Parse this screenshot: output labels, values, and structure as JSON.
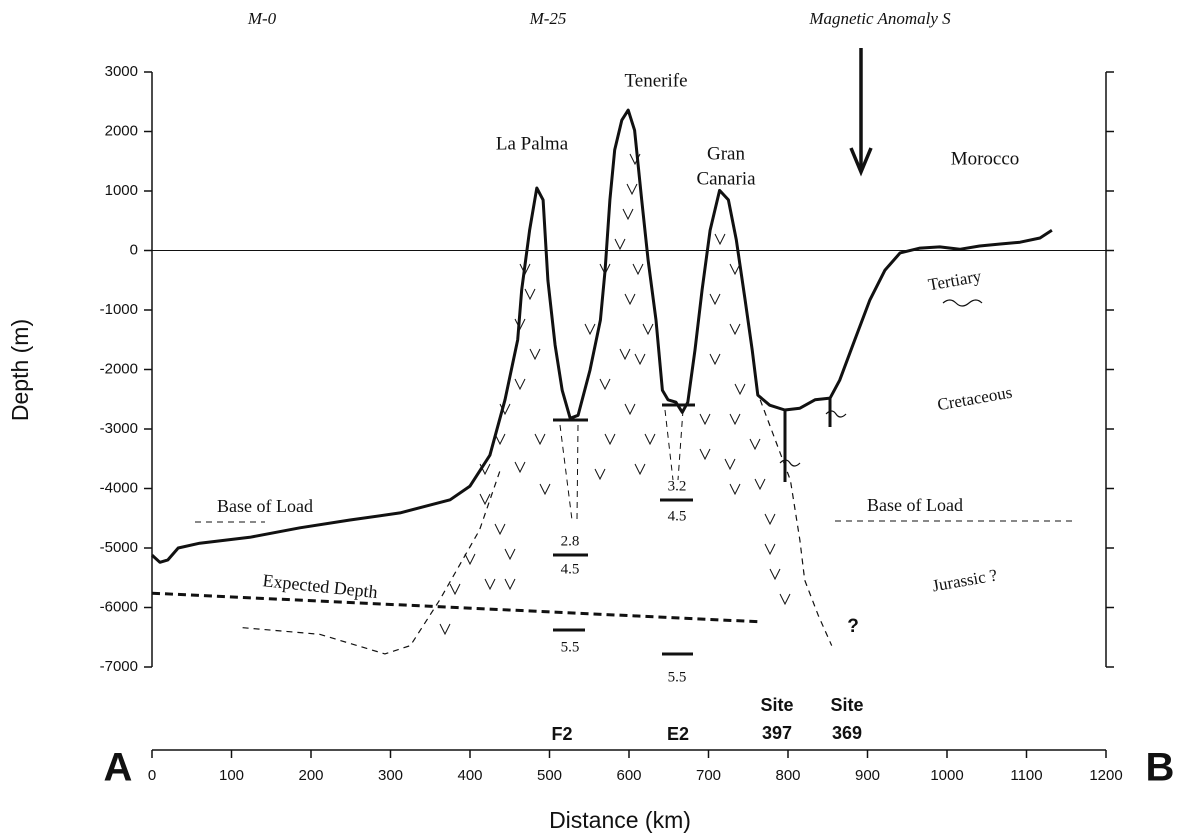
{
  "chart_data": {
    "type": "line",
    "x_label": "Distance (km)",
    "y_label": "Depth (m)",
    "xlim": [
      0,
      1200
    ],
    "xticks": [
      0,
      100,
      200,
      300,
      400,
      500,
      600,
      700,
      800,
      900,
      1000,
      1100,
      1200
    ],
    "ylim": [
      -7000,
      3000
    ],
    "yticks": [
      -7000,
      -6000,
      -5000,
      -4000,
      -3000,
      -2000,
      -1000,
      0,
      1000,
      2000,
      3000
    ],
    "series": [
      {
        "line_style": "solid",
        "color": "#111111",
        "x": [
          0,
          10,
          20,
          33,
          60,
          123,
          186,
          249,
          312,
          375,
          400,
          425,
          444,
          460,
          465,
          475,
          484,
          492,
          498,
          507,
          516,
          526,
          536,
          551,
          564,
          570,
          576,
          582,
          591,
          599,
          607,
          616,
          624,
          634,
          642,
          649,
          659,
          667,
          674,
          683,
          692,
          702,
          714,
          725,
          735,
          746,
          755,
          762,
          777,
          796,
          815,
          834,
          853,
          865,
          884,
          903,
          922,
          941,
          966,
          991,
          1016,
          1041,
          1067,
          1092,
          1117,
          1132
        ],
        "values": [
          -5120,
          -5240,
          -5200,
          -5000,
          -4920,
          -4820,
          -4660,
          -4530,
          -4410,
          -4190,
          -3960,
          -3440,
          -2510,
          -1500,
          -660,
          340,
          1050,
          850,
          -500,
          -1590,
          -2350,
          -2820,
          -2770,
          -2010,
          -1170,
          -330,
          850,
          1690,
          2190,
          2360,
          2020,
          850,
          -160,
          -1170,
          -2350,
          -2510,
          -2550,
          -2720,
          -2550,
          -1670,
          -660,
          340,
          1010,
          850,
          180,
          -830,
          -1670,
          -2430,
          -2600,
          -2680,
          -2650,
          -2510,
          -2480,
          -2180,
          -1500,
          -830,
          -330,
          -40,
          40,
          60,
          20,
          75,
          110,
          140,
          210,
          340
        ]
      },
      {
        "line_style": "thick-dashed",
        "color": "#111111",
        "x": [
          0,
          765
        ],
        "values": [
          -5760,
          -6240
        ]
      },
      {
        "line_style": "dashed",
        "color": "#111111",
        "x": [
          114,
          211,
          293,
          325,
          362,
          412,
          438,
          null,
          765,
          803,
          815,
          821,
          838,
          855
        ],
        "values": [
          -6340,
          -6450,
          -6780,
          -6640,
          -5870,
          -4700,
          -3690,
          null,
          -2510,
          -3860,
          -4870,
          -5540,
          -6130,
          -6640
        ]
      }
    ],
    "annotations": [
      "M-0",
      "M-25",
      "Magnetic Anomaly S",
      "La Palma",
      "Tenerife",
      "Gran",
      "Canaria",
      "Morocco",
      "Tertiary",
      "Cretaceous",
      "Jurassic ?",
      "Base of Load",
      "Base of Load",
      "Expected Depth",
      "?",
      "A",
      "B",
      "F2",
      "E2"
    ],
    "sites": [
      {
        "label": "Site",
        "number": "397"
      },
      {
        "label": "Site",
        "number": "369"
      }
    ],
    "seismic_velocities": [
      2.8,
      4.5,
      3.2,
      4.5,
      5.5,
      5.5
    ]
  }
}
